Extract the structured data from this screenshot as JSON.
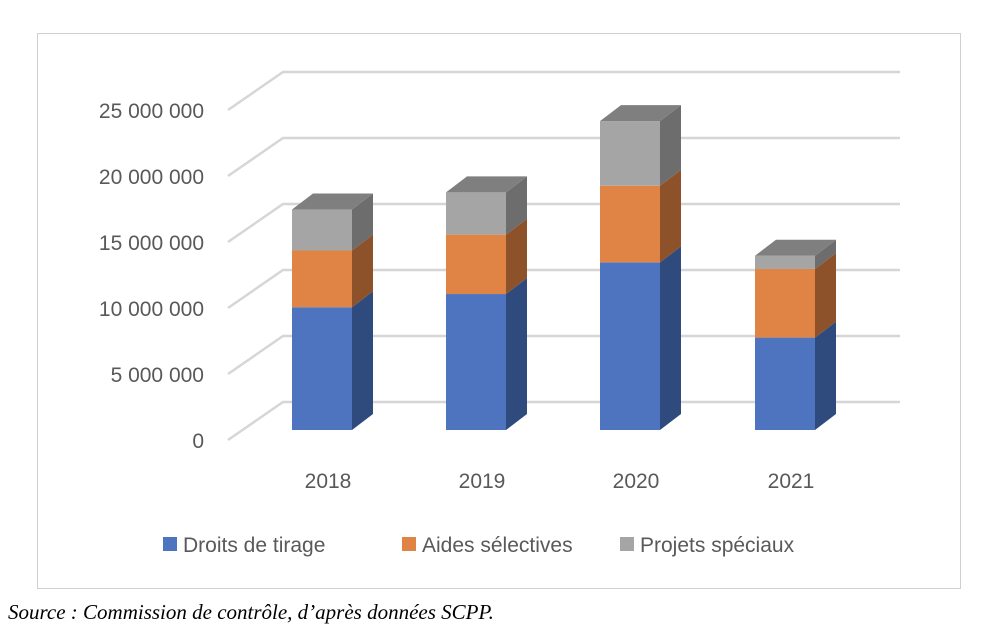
{
  "chart_data": {
    "type": "bar",
    "stacked": true,
    "three_d": true,
    "categories": [
      "2018",
      "2019",
      "2020",
      "2021"
    ],
    "series": [
      {
        "name": "Droits de tirage",
        "values": [
          9300000,
          10300000,
          12700000,
          7000000
        ],
        "color": "#4f74bf",
        "side_color": "#2f4a7d"
      },
      {
        "name": "Aides sélectives",
        "values": [
          4300000,
          4500000,
          5800000,
          5200000
        ],
        "color": "#df8444",
        "side_color": "#8e522a"
      },
      {
        "name": "Projets spéciaux",
        "values": [
          3100000,
          3200000,
          4900000,
          1000000
        ],
        "color": "#a5a5a5",
        "side_color": "#6d6d6d"
      }
    ],
    "yticks": [
      "0",
      "5 000 000",
      "10 000 000",
      "15 000 000",
      "20 000 000",
      "25 000 000"
    ],
    "ylim": [
      0,
      25000000
    ],
    "grid": true,
    "legend": "bottom"
  },
  "caption": "Source : Commission de contrôle, d’après données SCPP."
}
